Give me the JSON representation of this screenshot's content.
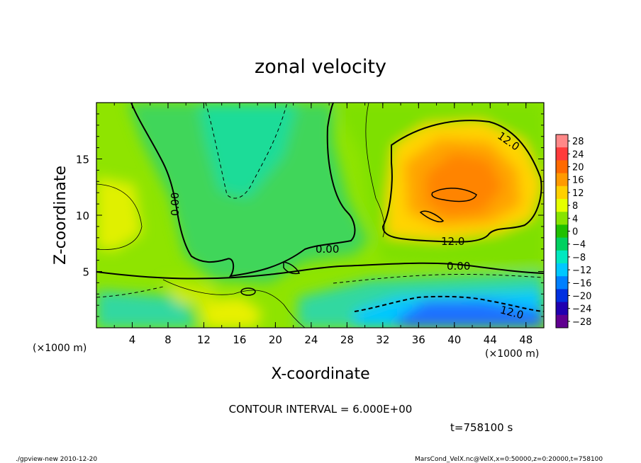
{
  "chart_data": {
    "type": "heatmap",
    "title": "zonal velocity",
    "xlabel": "X-coordinate",
    "ylabel": "Z-coordinate",
    "x_unit": "(×1000 m)",
    "y_unit": "(×1000 m)",
    "xlim": [
      0,
      50
    ],
    "ylim": [
      0,
      20
    ],
    "x_ticks": [
      4,
      8,
      12,
      16,
      20,
      24,
      28,
      32,
      36,
      40,
      44,
      48
    ],
    "y_ticks": [
      5,
      10,
      15
    ],
    "colorbar_levels": [
      28,
      24,
      20,
      16,
      12,
      8,
      4,
      0,
      -4,
      -8,
      -12,
      -16,
      -20,
      -24,
      -28
    ],
    "colorbar_colors": [
      "#ff8888",
      "#ff3b3b",
      "#ff6a00",
      "#ff9a00",
      "#ffd000",
      "#e6ff00",
      "#88e400",
      "#20c000",
      "#00d060",
      "#00e8c0",
      "#00c8ff",
      "#0080ff",
      "#0030e0",
      "#2000b0",
      "#600090"
    ],
    "contour_labels": [
      "12.0",
      "0.00",
      "0.00",
      "12.0",
      "0.00",
      "12.0"
    ],
    "contour_interval_text": "CONTOUR INTERVAL = 6.000E+00",
    "time_text": "t=758100 s",
    "regions": [
      {
        "name": "positive core",
        "x": [
          32,
          49
        ],
        "y": [
          7,
          17
        ],
        "max_value": 20
      },
      {
        "name": "negative core",
        "x": [
          31,
          49
        ],
        "y": [
          0,
          3
        ],
        "min_value": -16
      }
    ]
  },
  "footer": {
    "left": "./gpview-new  2010-12-20",
    "right": "MarsCond_VelX.nc@VelX,x=0:50000,z=0:20000,t=758100"
  }
}
